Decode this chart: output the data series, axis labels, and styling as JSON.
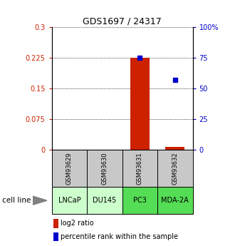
{
  "title": "GDS1697 / 24317",
  "samples": [
    "GSM93629",
    "GSM93630",
    "GSM93631",
    "GSM93632"
  ],
  "cell_lines": [
    "LNCaP",
    "DU145",
    "PC3",
    "MDA-2A"
  ],
  "cell_line_colors": [
    "#ccffcc",
    "#ccffcc",
    "#55dd55",
    "#55dd55"
  ],
  "log2_ratio": [
    null,
    null,
    0.225,
    0.008
  ],
  "percentile_rank": [
    null,
    null,
    75.0,
    57.0
  ],
  "ylim_left": [
    0,
    0.3
  ],
  "ylim_right": [
    0,
    100
  ],
  "yticks_left": [
    0,
    0.075,
    0.15,
    0.225,
    0.3
  ],
  "ytick_labels_left": [
    "0",
    "0.075",
    "0.15",
    "0.225",
    "0.3"
  ],
  "yticks_right": [
    0,
    25,
    50,
    75,
    100
  ],
  "ytick_labels_right": [
    "0",
    "25",
    "50",
    "75",
    "100%"
  ],
  "bar_color": "#cc2200",
  "dot_color": "#0000cc",
  "gsm_bg_color": "#c8c8c8",
  "legend_bar_label": "log2 ratio",
  "legend_dot_label": "percentile rank within the sample",
  "cell_line_label": "cell line",
  "fig_width": 3.3,
  "fig_height": 3.45,
  "dpi": 100
}
